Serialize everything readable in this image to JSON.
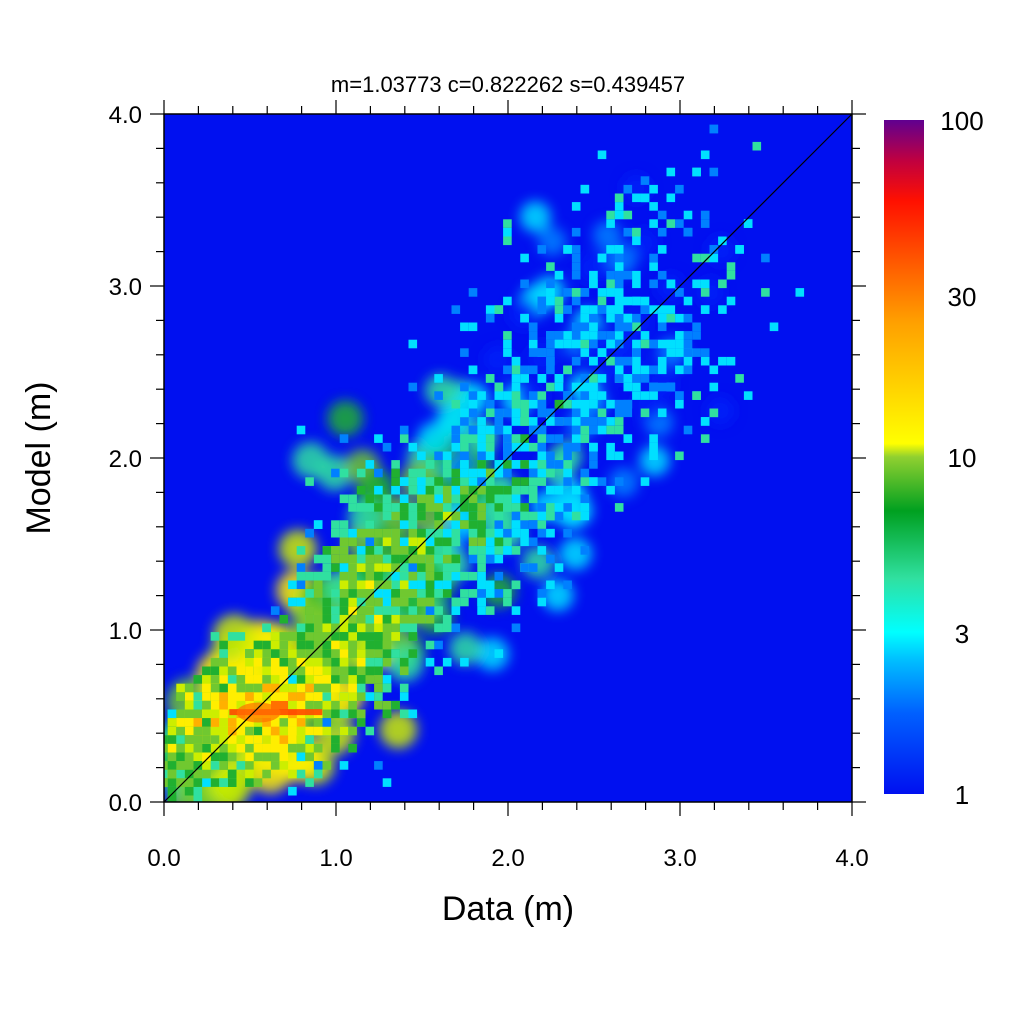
{
  "chart_data": {
    "type": "heatmap",
    "title": "m=1.03773 c=0.822262 s=0.439457",
    "xlabel": "Data (m)",
    "ylabel": "Model (m)",
    "xlim": [
      0,
      4
    ],
    "ylim": [
      0,
      4
    ],
    "x_ticks": [
      "0.0",
      "1.0",
      "2.0",
      "3.0",
      "4.0"
    ],
    "y_ticks": [
      "0.0",
      "1.0",
      "2.0",
      "3.0",
      "4.0"
    ],
    "reference_line": {
      "from": [
        0,
        0
      ],
      "to": [
        4,
        4
      ],
      "color": "#000000"
    },
    "colorbar": {
      "scale": "log",
      "range": [
        1,
        100
      ],
      "ticks": [
        1,
        3,
        10,
        30,
        100
      ],
      "tick_labels": [
        "1",
        "3",
        "10",
        "30",
        "100"
      ],
      "colors": [
        "#0010f0",
        "#00a0ff",
        "#00ffff",
        "#40e0b0",
        "#00a020",
        "#80d040",
        "#ffff00",
        "#ffa000",
        "#ff2000",
        "#c00030",
        "#600090"
      ]
    },
    "background_color": "#0010f0",
    "density_ridge": [
      {
        "x": 0.05,
        "y": 0.2,
        "count": 8
      },
      {
        "x": 0.2,
        "y": 0.35,
        "count": 14
      },
      {
        "x": 0.35,
        "y": 0.5,
        "count": 20
      },
      {
        "x": 0.5,
        "y": 0.52,
        "count": 28
      },
      {
        "x": 0.7,
        "y": 0.55,
        "count": 22
      },
      {
        "x": 0.9,
        "y": 0.7,
        "count": 15
      },
      {
        "x": 1.1,
        "y": 1.0,
        "count": 12
      },
      {
        "x": 1.3,
        "y": 1.35,
        "count": 11
      },
      {
        "x": 1.6,
        "y": 1.55,
        "count": 9
      },
      {
        "x": 1.9,
        "y": 1.8,
        "count": 6
      },
      {
        "x": 2.2,
        "y": 2.2,
        "count": 4
      },
      {
        "x": 2.6,
        "y": 2.6,
        "count": 3
      },
      {
        "x": 3.0,
        "y": 3.1,
        "count": 2
      }
    ]
  }
}
